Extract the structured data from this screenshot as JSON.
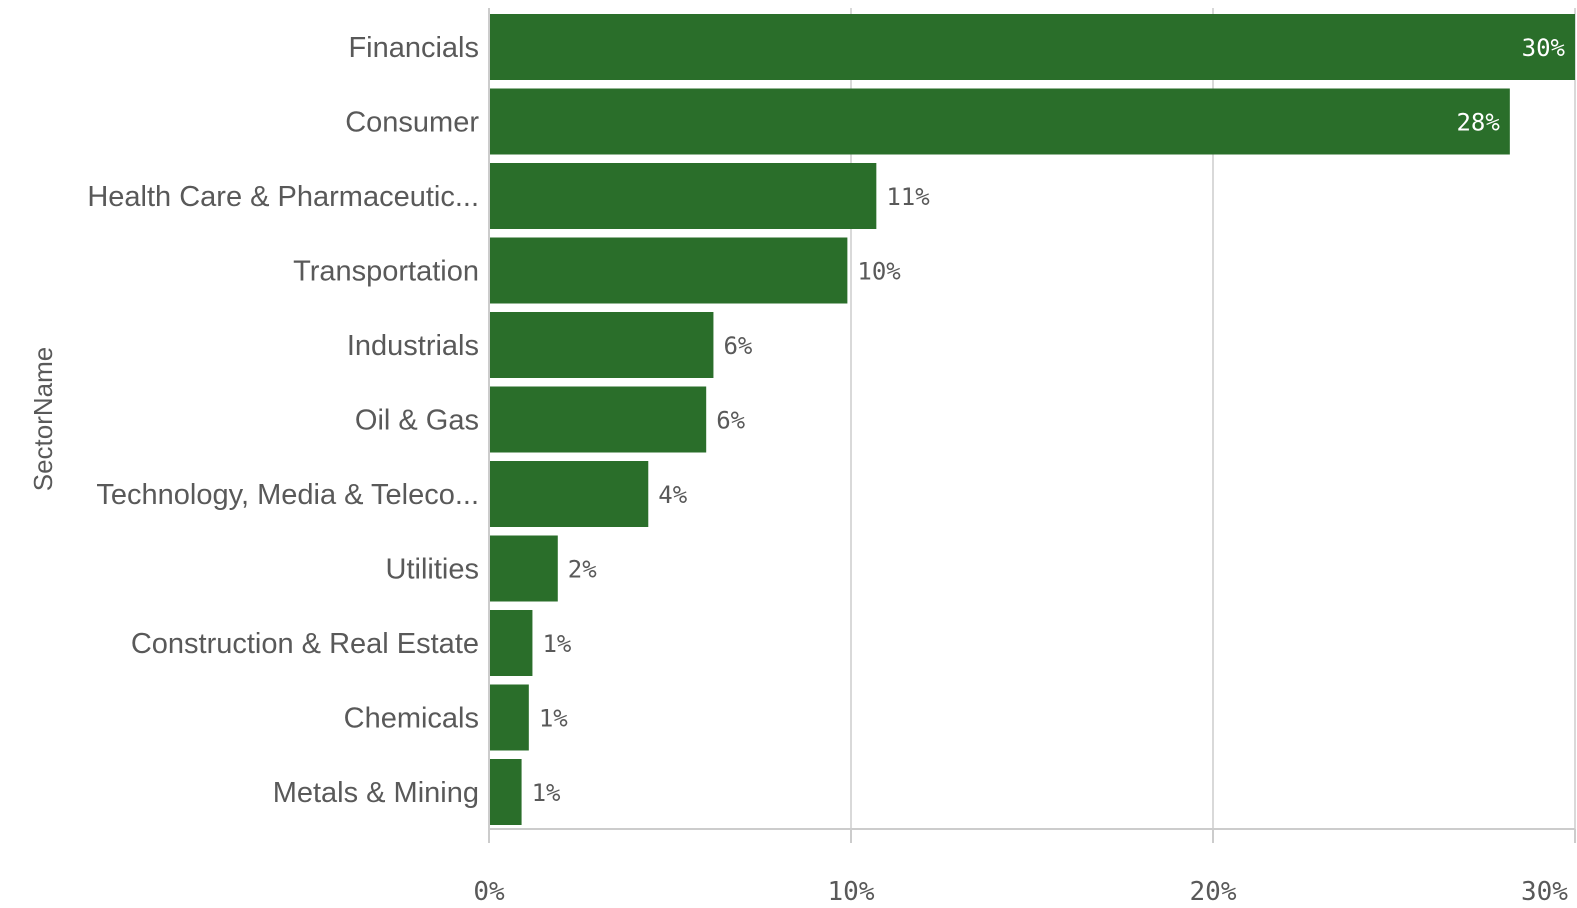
{
  "chart_data": {
    "type": "bar",
    "orientation": "horizontal",
    "title": "",
    "ylabel": "SectorName",
    "xlabel": "",
    "categories": [
      "Financials",
      "Consumer",
      "Health Care & Pharmaceutic...",
      "Transportation",
      "Industrials",
      "Oil & Gas",
      "Technology, Media & Teleco...",
      "Utilities",
      "Construction & Real Estate",
      "Chemicals",
      "Metals & Mining"
    ],
    "values": [
      0.3,
      0.282,
      0.107,
      0.099,
      0.062,
      0.06,
      0.044,
      0.019,
      0.012,
      0.011,
      0.009
    ],
    "value_labels": [
      "30%",
      "28%",
      "11%",
      "10%",
      "6%",
      "6%",
      "4%",
      "2%",
      "1%",
      "1%",
      "1%"
    ],
    "xlim": [
      0,
      0.3
    ],
    "x_ticks": [
      0,
      0.1,
      0.2,
      0.3
    ],
    "x_tick_labels": [
      "0%",
      "10%",
      "20%",
      "30%"
    ],
    "grid": true,
    "legend": "none",
    "colors": {
      "bar": "#2a6e2a",
      "grid": "#d9d9d9",
      "axis": "#cccccc",
      "label_outside": "#595959",
      "label_inside": "#ffffff"
    }
  }
}
